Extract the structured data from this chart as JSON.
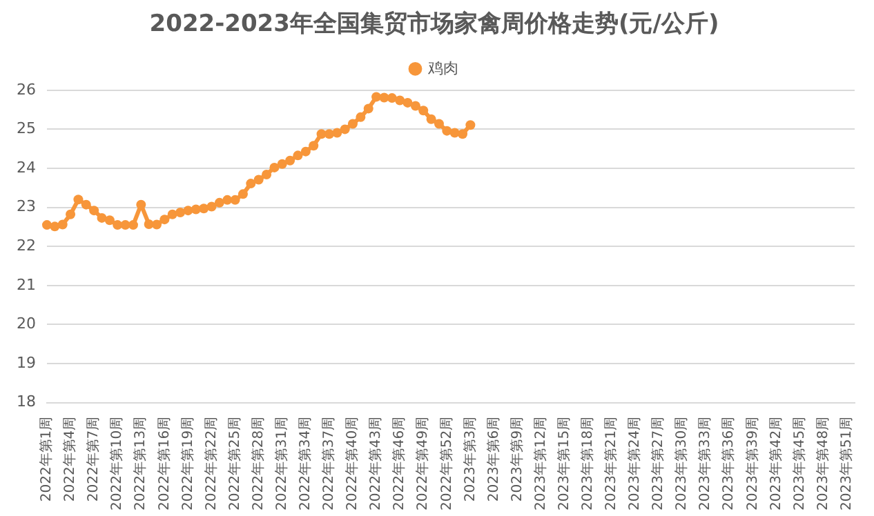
{
  "chart_data": {
    "type": "line",
    "title": "2022-2023年全国集贸市场家禽周价格走势(元/公斤)",
    "categories": [
      "2022年第1周",
      null,
      null,
      "2022年第4周",
      null,
      null,
      "2022年第7周",
      null,
      null,
      "2022年第10周",
      null,
      null,
      "2022年第13周",
      null,
      null,
      "2022年第16周",
      null,
      null,
      "2022年第19周",
      null,
      null,
      "2022年第22周",
      null,
      null,
      "2022年第25周",
      null,
      null,
      "2022年第28周",
      null,
      null,
      "2022年第31周",
      null,
      null,
      "2022年第34周",
      null,
      null,
      "2022年第37周",
      null,
      null,
      "2022年第40周",
      null,
      null,
      "2022年第43周",
      null,
      null,
      "2022年第46周",
      null,
      null,
      "2022年第49周",
      null,
      null,
      "2022年第52周",
      null,
      null,
      "2023年第3周",
      null,
      null,
      "2023年第6周",
      null,
      null,
      "2023年第9周",
      null,
      null,
      "2023年第12周",
      null,
      null,
      "2023年第15周",
      null,
      null,
      "2023年第18周",
      null,
      null,
      "2023年第21周",
      null,
      null,
      "2023年第24周",
      null,
      null,
      "2023年第27周",
      null,
      null,
      "2023年第30周",
      null,
      null,
      "2023年第33周",
      null,
      null,
      "2023年第36周",
      null,
      null,
      "2023年第39周",
      null,
      null,
      "2023年第42周",
      null,
      null,
      "2023年第45周",
      null,
      null,
      "2023年第48周",
      null,
      null,
      "2023年第51周",
      null
    ],
    "series": [
      {
        "name": "鸡肉",
        "color": "#f7963a",
        "values": [
          22.55,
          22.51,
          22.56,
          22.82,
          23.2,
          23.07,
          22.92,
          22.73,
          22.67,
          22.55,
          22.55,
          22.55,
          23.07,
          22.57,
          22.56,
          22.69,
          22.82,
          22.87,
          22.92,
          22.95,
          22.97,
          23.02,
          23.12,
          23.19,
          23.19,
          23.34,
          23.61,
          23.71,
          23.84,
          24.02,
          24.11,
          24.2,
          24.33,
          24.43,
          24.58,
          24.88,
          24.88,
          24.91,
          25.0,
          25.14,
          25.31,
          25.53,
          25.83,
          25.81,
          25.8,
          25.74,
          25.68,
          25.6,
          25.48,
          25.26,
          25.14,
          24.96,
          24.91,
          24.88,
          25.11,
          null,
          null,
          null,
          null,
          null,
          null,
          null,
          null,
          null,
          null,
          null,
          null,
          null,
          null,
          null,
          null,
          null,
          null,
          null,
          null,
          null,
          null,
          null,
          null,
          null,
          null,
          null,
          null,
          null,
          null,
          null,
          null,
          null,
          null,
          null,
          null,
          null,
          null,
          null,
          null,
          null,
          null,
          null,
          null,
          null,
          null,
          null,
          null,
          null
        ]
      }
    ],
    "ylim": [
      18,
      26
    ],
    "yticks": [
      18,
      19,
      20,
      21,
      22,
      23,
      24,
      25,
      26
    ],
    "grid": "y",
    "legend": "top",
    "marker": "circle",
    "line_style": "solid"
  }
}
